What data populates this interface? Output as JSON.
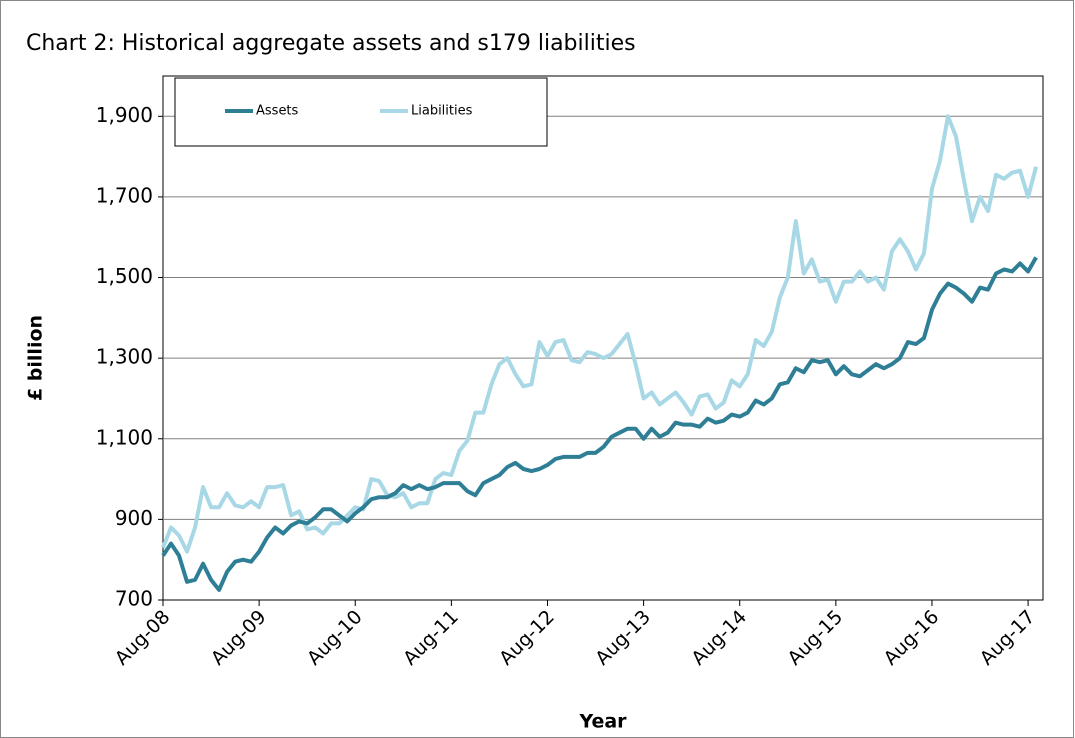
{
  "chart_data": {
    "type": "line",
    "title": "Chart 2: Historical aggregate assets and s179 liabilities",
    "x_label": "Year",
    "y_label": "£ billion",
    "categories": [
      "Aug-08",
      null,
      null,
      null,
      null,
      null,
      null,
      null,
      null,
      null,
      null,
      null,
      "Aug-09",
      null,
      null,
      null,
      null,
      null,
      null,
      null,
      null,
      null,
      null,
      null,
      "Aug-10",
      null,
      null,
      null,
      null,
      null,
      null,
      null,
      null,
      null,
      null,
      null,
      "Aug-11",
      null,
      null,
      null,
      null,
      null,
      null,
      null,
      null,
      null,
      null,
      null,
      "Aug-12",
      null,
      null,
      null,
      null,
      null,
      null,
      null,
      null,
      null,
      null,
      null,
      "Aug-13",
      null,
      null,
      null,
      null,
      null,
      null,
      null,
      null,
      null,
      null,
      null,
      "Aug-14",
      null,
      null,
      null,
      null,
      null,
      null,
      null,
      null,
      null,
      null,
      null,
      "Aug-15",
      null,
      null,
      null,
      null,
      null,
      null,
      null,
      null,
      null,
      null,
      null,
      "Aug-16",
      null,
      null,
      null,
      null,
      null,
      null,
      null,
      null,
      null,
      null,
      null,
      "Aug-17",
      null
    ],
    "series": [
      {
        "name": "Assets",
        "color": "#2e7f96",
        "values": [
          810,
          840,
          810,
          745,
          750,
          790,
          750,
          725,
          770,
          795,
          800,
          795,
          820,
          855,
          880,
          865,
          885,
          895,
          890,
          905,
          925,
          925,
          910,
          895,
          915,
          930,
          950,
          955,
          955,
          965,
          985,
          975,
          985,
          975,
          980,
          990,
          990,
          990,
          970,
          960,
          990,
          1000,
          1010,
          1030,
          1040,
          1025,
          1020,
          1025,
          1035,
          1050,
          1055,
          1055,
          1055,
          1065,
          1065,
          1080,
          1105,
          1115,
          1125,
          1125,
          1100,
          1125,
          1105,
          1115,
          1140,
          1135,
          1135,
          1130,
          1150,
          1140,
          1145,
          1160,
          1155,
          1165,
          1195,
          1185,
          1200,
          1235,
          1240,
          1275,
          1265,
          1295,
          1290,
          1295,
          1260,
          1280,
          1260,
          1255,
          1270,
          1285,
          1275,
          1285,
          1300,
          1340,
          1335,
          1350,
          1420,
          1460,
          1485,
          1475,
          1460,
          1440,
          1475,
          1470,
          1510,
          1520,
          1515,
          1535,
          1515,
          1550
        ]
      },
      {
        "name": "Liabilities",
        "color": "#a8d8e6",
        "values": [
          830,
          880,
          860,
          820,
          880,
          980,
          930,
          930,
          965,
          935,
          930,
          945,
          930,
          980,
          980,
          985,
          910,
          920,
          875,
          880,
          865,
          890,
          890,
          910,
          930,
          925,
          1000,
          995,
          960,
          955,
          965,
          930,
          940,
          940,
          1000,
          1015,
          1010,
          1070,
          1095,
          1165,
          1165,
          1235,
          1285,
          1300,
          1260,
          1230,
          1235,
          1340,
          1305,
          1340,
          1345,
          1295,
          1290,
          1315,
          1310,
          1300,
          1310,
          1335,
          1360,
          1285,
          1200,
          1215,
          1185,
          1200,
          1215,
          1190,
          1160,
          1205,
          1210,
          1175,
          1190,
          1245,
          1230,
          1260,
          1345,
          1330,
          1365,
          1450,
          1500,
          1640,
          1510,
          1545,
          1490,
          1495,
          1440,
          1490,
          1490,
          1515,
          1490,
          1500,
          1470,
          1565,
          1595,
          1565,
          1520,
          1560,
          1720,
          1790,
          1900,
          1850,
          1740,
          1640,
          1700,
          1665,
          1755,
          1745,
          1760,
          1765,
          1700,
          1775
        ]
      }
    ],
    "ylim": [
      700,
      2000
    ],
    "yticks": [
      {
        "value": 700,
        "label": "700"
      },
      {
        "value": 900,
        "label": "900"
      },
      {
        "value": 1100,
        "label": "1,100"
      },
      {
        "value": 1300,
        "label": "1,300"
      },
      {
        "value": 1500,
        "label": "1,500"
      },
      {
        "value": 1700,
        "label": "1,700"
      },
      {
        "value": 1900,
        "label": "1,900"
      }
    ],
    "grid": true
  }
}
